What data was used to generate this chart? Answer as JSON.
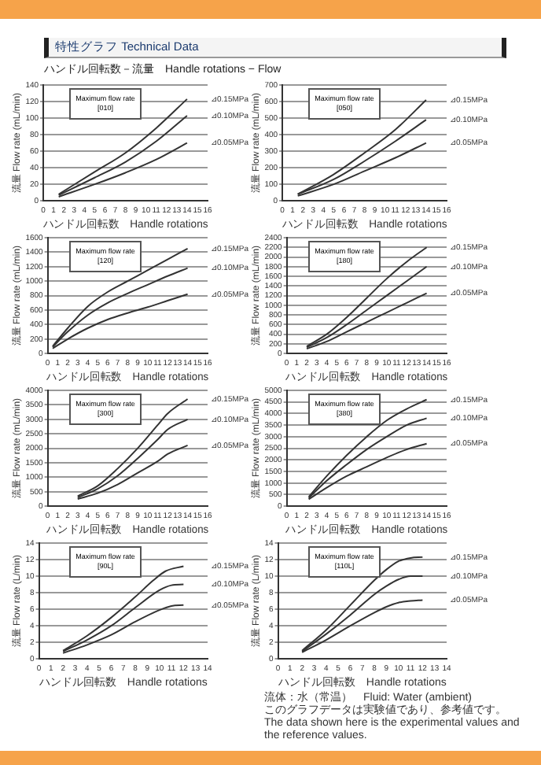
{
  "chart_data": [
    {
      "type": "line",
      "title": "特性グラフ Technical Data",
      "subtitle": "ハンドル回転数－流量　Handle rotations − Flow",
      "xlabel": "ハンドル回転数　Handle rotations",
      "ylabel": "流量 Flow rate (mL/min)",
      "annotations": [
        "Maximum flow rate [010]"
      ],
      "xlim": [
        0,
        16
      ],
      "xticks": [
        0,
        1,
        2,
        3,
        4,
        5,
        6,
        7,
        8,
        9,
        10,
        11,
        12,
        13,
        14,
        15,
        16
      ],
      "ylim": [
        0,
        140
      ],
      "yticks": [
        0,
        20,
        40,
        60,
        80,
        100,
        120,
        140
      ],
      "grid": "y",
      "legend": false,
      "marker": "none",
      "line_style": "solid",
      "series": [
        {
          "name": "⊿0.15MPa",
          "color": "#333333",
          "x": [
            1.5,
            5,
            8,
            11,
            14
          ],
          "values": [
            8,
            35,
            58,
            88,
            123
          ]
        },
        {
          "name": "⊿0.10MPa",
          "color": "#333333",
          "x": [
            1.5,
            5,
            8,
            11,
            14
          ],
          "values": [
            7,
            28,
            47,
            72,
            103
          ]
        },
        {
          "name": "⊿0.05MPa",
          "color": "#333333",
          "x": [
            1.5,
            5,
            8,
            11,
            14
          ],
          "values": [
            5,
            20,
            34,
            50,
            70
          ]
        }
      ]
    },
    {
      "type": "line",
      "xlabel": "ハンドル回転数　Handle rotations",
      "ylabel": "流量 Flow rate (mL/min)",
      "annotations": [
        "Maximum flow rate [050]"
      ],
      "xlim": [
        0,
        16
      ],
      "xticks": [
        0,
        1,
        2,
        3,
        4,
        5,
        6,
        7,
        8,
        9,
        10,
        11,
        12,
        13,
        14,
        15,
        16
      ],
      "ylim": [
        0,
        700
      ],
      "yticks": [
        0,
        100,
        200,
        300,
        400,
        500,
        600,
        700
      ],
      "grid": "y",
      "legend": false,
      "marker": "none",
      "line_style": "solid",
      "series": [
        {
          "name": "⊿0.15MPa",
          "color": "#333333",
          "x": [
            1.5,
            5,
            8,
            11,
            14
          ],
          "values": [
            40,
            160,
            290,
            430,
            610
          ]
        },
        {
          "name": "⊿0.10MPa",
          "color": "#333333",
          "x": [
            1.5,
            5,
            8,
            11,
            14
          ],
          "values": [
            40,
            130,
            240,
            360,
            490
          ]
        },
        {
          "name": "⊿0.05MPa",
          "color": "#333333",
          "x": [
            1.5,
            5,
            8,
            11,
            14
          ],
          "values": [
            30,
            100,
            180,
            260,
            350
          ]
        }
      ]
    },
    {
      "type": "line",
      "xlabel": "ハンドル回転数　Handle rotations",
      "ylabel": "流量 Flow rate (mL/min)",
      "annotations": [
        "Maximum flow rate [120]"
      ],
      "xlim": [
        0,
        16
      ],
      "xticks": [
        0,
        1,
        2,
        3,
        4,
        5,
        6,
        7,
        8,
        9,
        10,
        11,
        12,
        13,
        14,
        15,
        16
      ],
      "ylim": [
        0,
        1600
      ],
      "yticks": [
        0,
        200,
        400,
        600,
        800,
        1000,
        1200,
        1400,
        1600
      ],
      "grid": "y",
      "legend": false,
      "marker": "none",
      "line_style": "solid",
      "series": [
        {
          "name": "⊿0.15MPa",
          "color": "#333333",
          "x": [
            0.5,
            2,
            4,
            6,
            8,
            10,
            12,
            14
          ],
          "values": [
            100,
            350,
            650,
            850,
            1000,
            1150,
            1300,
            1450
          ]
        },
        {
          "name": "⊿0.10MPa",
          "color": "#333333",
          "x": [
            0.5,
            2,
            4,
            6,
            8,
            10,
            12,
            14
          ],
          "values": [
            90,
            300,
            530,
            700,
            830,
            950,
            1070,
            1180
          ]
        },
        {
          "name": "⊿0.05MPa",
          "color": "#333333",
          "x": [
            0.5,
            2,
            4,
            6,
            8,
            10,
            12,
            14
          ],
          "values": [
            70,
            200,
            350,
            470,
            560,
            640,
            730,
            820
          ]
        }
      ]
    },
    {
      "type": "line",
      "xlabel": "ハンドル回転数　Handle rotations",
      "ylabel": "流量 Flow rate (mL/min)",
      "annotations": [
        "Maximum flow rate [180]"
      ],
      "xlim": [
        0,
        16
      ],
      "xticks": [
        0,
        1,
        2,
        3,
        4,
        5,
        6,
        7,
        8,
        9,
        10,
        11,
        12,
        13,
        14,
        15,
        16
      ],
      "ylim": [
        0,
        2400
      ],
      "yticks": [
        0,
        200,
        400,
        600,
        800,
        1000,
        1200,
        1400,
        1600,
        1800,
        2000,
        2200,
        2400
      ],
      "grid": "y",
      "legend": false,
      "marker": "none",
      "line_style": "solid",
      "series": [
        {
          "name": "⊿0.15MPa",
          "color": "#333333",
          "x": [
            2,
            4,
            6,
            8,
            10,
            12,
            14
          ],
          "values": [
            150,
            400,
            750,
            1150,
            1550,
            1900,
            2200
          ]
        },
        {
          "name": "⊿0.10MPa",
          "color": "#333333",
          "x": [
            2,
            4,
            6,
            8,
            10,
            12,
            14
          ],
          "values": [
            130,
            330,
            600,
            900,
            1200,
            1500,
            1800
          ]
        },
        {
          "name": "⊿0.05MPa",
          "color": "#333333",
          "x": [
            2,
            4,
            6,
            8,
            10,
            12,
            14
          ],
          "values": [
            100,
            250,
            450,
            650,
            850,
            1050,
            1250
          ]
        }
      ]
    },
    {
      "type": "line",
      "xlabel": "ハンドル回転数　Handle rotations",
      "ylabel": "流量 Flow rate (mL/min)",
      "annotations": [
        "Maximum flow rate [300]"
      ],
      "xlim": [
        0,
        16
      ],
      "xticks": [
        0,
        1,
        2,
        3,
        4,
        5,
        6,
        7,
        8,
        9,
        10,
        11,
        12,
        13,
        14,
        15,
        16
      ],
      "ylim": [
        0,
        4000
      ],
      "yticks": [
        0,
        500,
        1000,
        1500,
        2000,
        2500,
        3000,
        3500,
        4000
      ],
      "grid": "y",
      "legend": false,
      "marker": "none",
      "line_style": "solid",
      "series": [
        {
          "name": "⊿0.15MPa",
          "color": "#333333",
          "x": [
            3,
            5,
            7,
            9,
            11,
            12,
            14
          ],
          "values": [
            350,
            700,
            1300,
            2000,
            2800,
            3200,
            3700
          ]
        },
        {
          "name": "⊿0.10MPa",
          "color": "#333333",
          "x": [
            3,
            5,
            7,
            9,
            11,
            12,
            14
          ],
          "values": [
            300,
            600,
            1050,
            1650,
            2300,
            2650,
            3000
          ]
        },
        {
          "name": "⊿0.05MPa",
          "color": "#333333",
          "x": [
            3,
            5,
            7,
            9,
            11,
            12,
            14
          ],
          "values": [
            250,
            450,
            750,
            1150,
            1550,
            1800,
            2100
          ]
        }
      ]
    },
    {
      "type": "line",
      "xlabel": "ハンドル回転数　Handle rotations",
      "ylabel": "流量 Flow rate (mL/min)",
      "annotations": [
        "Maximum flow rate [380]"
      ],
      "xlim": [
        0,
        16
      ],
      "xticks": [
        0,
        1,
        2,
        3,
        4,
        5,
        6,
        7,
        8,
        9,
        10,
        11,
        12,
        13,
        14,
        15,
        16
      ],
      "ylim": [
        0,
        5000
      ],
      "yticks": [
        0,
        500,
        1000,
        1500,
        2000,
        2500,
        3000,
        3500,
        4000,
        4500,
        5000
      ],
      "grid": "y",
      "legend": false,
      "marker": "none",
      "line_style": "solid",
      "series": [
        {
          "name": "⊿0.15MPa",
          "color": "#333333",
          "x": [
            2.2,
            4,
            6,
            8,
            10,
            12,
            14
          ],
          "values": [
            400,
            1300,
            2200,
            3000,
            3700,
            4200,
            4600
          ]
        },
        {
          "name": "⊿0.10MPa",
          "color": "#333333",
          "x": [
            2.2,
            4,
            6,
            8,
            10,
            12,
            14
          ],
          "values": [
            350,
            1100,
            1800,
            2450,
            3000,
            3500,
            3800
          ]
        },
        {
          "name": "⊿0.05MPa",
          "color": "#333333",
          "x": [
            2.2,
            4,
            6,
            8,
            10,
            12,
            14
          ],
          "values": [
            300,
            800,
            1300,
            1700,
            2100,
            2450,
            2700
          ]
        }
      ]
    },
    {
      "type": "line",
      "xlabel": "ハンドル回転数　Handle rotations",
      "ylabel": "流量 Flow rate (L/min)",
      "annotations": [
        "Maximum flow rate [90L]"
      ],
      "xlim": [
        0,
        14
      ],
      "xticks": [
        0,
        1,
        2,
        3,
        4,
        5,
        6,
        7,
        8,
        9,
        10,
        11,
        12,
        13,
        14
      ],
      "ylim": [
        0,
        14
      ],
      "yticks": [
        0,
        2,
        4,
        6,
        8,
        10,
        12,
        14
      ],
      "grid": "y",
      "legend": false,
      "marker": "none",
      "line_style": "solid",
      "series": [
        {
          "name": "⊿0.15MPa",
          "color": "#333333",
          "x": [
            2,
            4,
            6,
            8,
            9.5,
            10.5,
            12
          ],
          "values": [
            1,
            2.8,
            5,
            7.5,
            9.5,
            10.6,
            11.2
          ]
        },
        {
          "name": "⊿0.10MPa",
          "color": "#333333",
          "x": [
            2,
            4,
            6,
            8,
            10,
            11,
            12
          ],
          "values": [
            0.9,
            2.3,
            4,
            6.2,
            8.3,
            8.9,
            9
          ]
        },
        {
          "name": "⊿0.05MPa",
          "color": "#333333",
          "x": [
            2,
            4,
            6,
            8,
            10,
            11,
            12
          ],
          "values": [
            0.7,
            1.7,
            2.9,
            4.5,
            5.9,
            6.4,
            6.5
          ]
        }
      ]
    },
    {
      "type": "line",
      "xlabel": "ハンドル回転数　Handle rotations",
      "ylabel": "流量 Flow rate (L/min)",
      "annotations": [
        "Maximum flow rate [110L]",
        "流体：水（常温）　Fluid: Water (ambient)",
        "このグラフデータは実験値であり、参考値です。",
        "The data shown here is the experimental values and the reference values."
      ],
      "xlim": [
        0,
        14
      ],
      "xticks": [
        0,
        1,
        2,
        3,
        4,
        5,
        6,
        7,
        8,
        9,
        10,
        11,
        12,
        13,
        14
      ],
      "ylim": [
        0,
        14
      ],
      "yticks": [
        0,
        2,
        4,
        6,
        8,
        10,
        12,
        14
      ],
      "grid": "y",
      "legend": false,
      "marker": "none",
      "line_style": "solid",
      "series": [
        {
          "name": "⊿0.15MPa",
          "color": "#333333",
          "x": [
            2,
            4,
            6,
            8,
            9,
            10,
            11,
            12
          ],
          "values": [
            1,
            3.5,
            6.5,
            9.5,
            10.8,
            11.8,
            12.2,
            12.3
          ]
        },
        {
          "name": "⊿0.10MPa",
          "color": "#333333",
          "x": [
            2,
            4,
            6,
            8,
            9,
            10,
            11,
            12
          ],
          "values": [
            0.9,
            3,
            5.3,
            7.8,
            8.8,
            9.6,
            10,
            10
          ]
        },
        {
          "name": "⊿0.05MPa",
          "color": "#333333",
          "x": [
            2,
            4,
            6,
            8,
            9,
            10,
            11,
            12
          ],
          "values": [
            0.8,
            2.3,
            4,
            5.6,
            6.3,
            6.8,
            7,
            7.1
          ]
        }
      ]
    }
  ]
}
